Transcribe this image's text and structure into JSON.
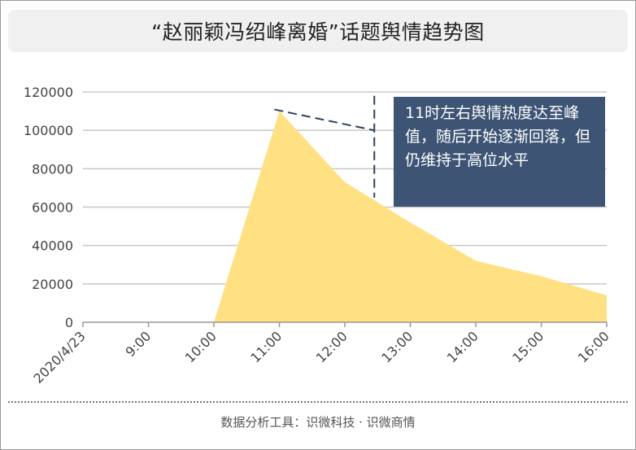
{
  "title": "“赵丽颖冯绍峰离婚”话题舆情趋势图",
  "footer": "数据分析工具：识微科技 · 识微商情",
  "annotation": "11时左右舆情热度达至峰值，随后开始逐渐回落，但仍维持于高位水平",
  "chart_data": {
    "type": "area",
    "categories": [
      "2020/4/23",
      "9:00",
      "10:00",
      "11:00",
      "12:00",
      "13:00",
      "14:00",
      "15:00",
      "16:00"
    ],
    "series": [
      {
        "values": [
          0,
          0,
          0,
          110000,
          73000,
          52000,
          32000,
          24000,
          14000
        ]
      }
    ],
    "yticks": [
      0,
      20000,
      40000,
      60000,
      80000,
      100000,
      120000
    ],
    "ylim": [
      0,
      120000
    ],
    "grid": true,
    "legend": "none",
    "colors": {
      "area": "#ffe083",
      "grid": "#c8c8c8",
      "axis": "#999999",
      "annotation_bg": "#3d5474",
      "trend_line": "#2d3f5e"
    },
    "trend_line": {
      "x": [
        3,
        4.5
      ],
      "y": [
        110000,
        100000
      ]
    },
    "marker_line": {
      "x": 4.5,
      "y": [
        0,
        118000
      ]
    }
  }
}
